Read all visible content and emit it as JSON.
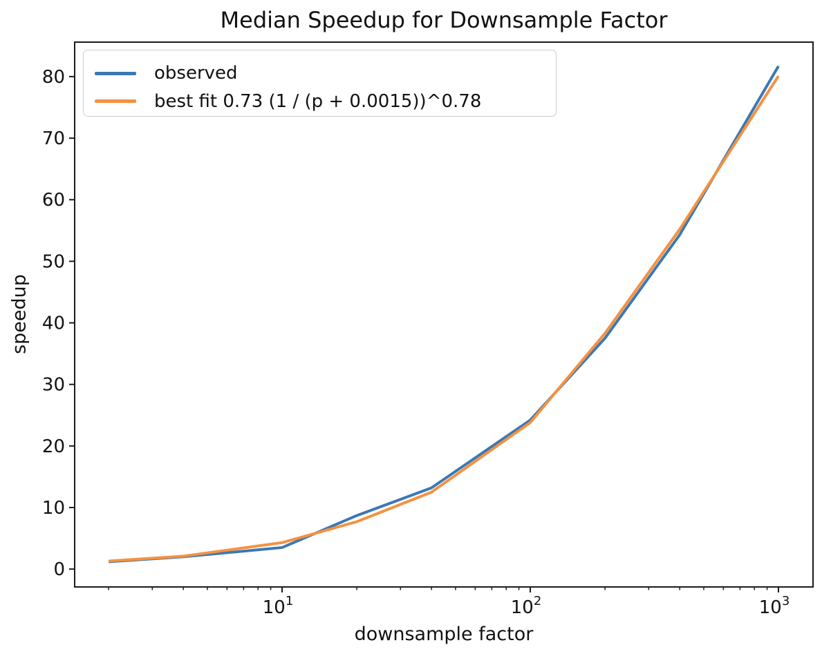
{
  "chart_data": {
    "type": "line",
    "title": "Median Speedup for Downsample Factor",
    "xlabel": "downsample factor",
    "ylabel": "speedup",
    "x_scale": "log",
    "grid": false,
    "x": [
      2,
      4,
      10,
      20,
      40,
      100,
      200,
      400,
      1000
    ],
    "series": [
      {
        "name": "observed",
        "color": "#3b78b4",
        "values": [
          1.2,
          2.0,
          3.5,
          8.7,
          13.2,
          24.2,
          37.5,
          54.3,
          81.7
        ]
      },
      {
        "name": "best fit 0.73 (1 / (p + 0.0015))^0.78",
        "color": "#f59140",
        "values": [
          1.3,
          2.1,
          4.3,
          7.7,
          12.5,
          23.8,
          38.3,
          55.2,
          80.1
        ]
      }
    ],
    "x_ticks": [
      {
        "value": 10,
        "base": "10",
        "exp": "1"
      },
      {
        "value": 100,
        "base": "10",
        "exp": "2"
      },
      {
        "value": 1000,
        "base": "10",
        "exp": "3"
      }
    ],
    "x_minor_ticks": [
      2,
      3,
      4,
      5,
      6,
      7,
      8,
      9,
      20,
      30,
      40,
      50,
      60,
      70,
      80,
      90,
      200,
      300,
      400,
      500,
      600,
      700,
      800,
      900
    ],
    "y_ticks": [
      0,
      10,
      20,
      30,
      40,
      50,
      60,
      70,
      80
    ],
    "xlim": [
      1.46,
      1378
    ],
    "ylim": [
      -2.9,
      85.6
    ],
    "legend_position": "upper-left",
    "axis_color": "#1a1a1a",
    "text_color": "#111111"
  }
}
